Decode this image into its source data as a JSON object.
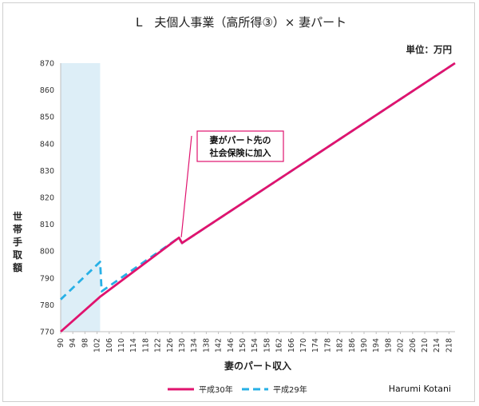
{
  "chart_data": {
    "type": "line",
    "title": "L　夫個人事業（高所得③）× 妻パート",
    "unit_label": "単位：万円",
    "xlabel": "妻のパート収入",
    "ylabel": "世帯手取額",
    "xlim": [
      90,
      220
    ],
    "ylim": [
      770,
      870
    ],
    "x_ticks": [
      90,
      94,
      98,
      102,
      106,
      110,
      114,
      118,
      122,
      126,
      130,
      134,
      138,
      142,
      146,
      150,
      154,
      158,
      162,
      166,
      170,
      174,
      178,
      182,
      186,
      190,
      194,
      198,
      202,
      206,
      210,
      214,
      218
    ],
    "y_ticks": [
      770,
      780,
      790,
      800,
      810,
      820,
      830,
      840,
      850,
      860,
      870
    ],
    "grid": false,
    "legend_position": "bottom",
    "highlight_band": {
      "x_from": 90,
      "x_to": 103
    },
    "series": [
      {
        "name": "平成30年",
        "color": "#e0136e",
        "style": "solid",
        "points": [
          [
            90,
            770
          ],
          [
            103,
            783
          ],
          [
            129,
            805
          ],
          [
            130,
            803
          ],
          [
            220,
            870
          ]
        ]
      },
      {
        "name": "平成29年",
        "color": "#27b0e6",
        "style": "dashed",
        "points": [
          [
            90,
            782
          ],
          [
            103,
            796
          ],
          [
            103.5,
            785
          ],
          [
            129,
            805
          ],
          [
            130,
            803
          ],
          [
            220,
            870
          ]
        ]
      }
    ],
    "annotation": {
      "text_line1": "妻がパート先の",
      "text_line2": "社会保険に加入",
      "x": 129.5,
      "y": 804
    },
    "author": "Harumi Kotani"
  }
}
